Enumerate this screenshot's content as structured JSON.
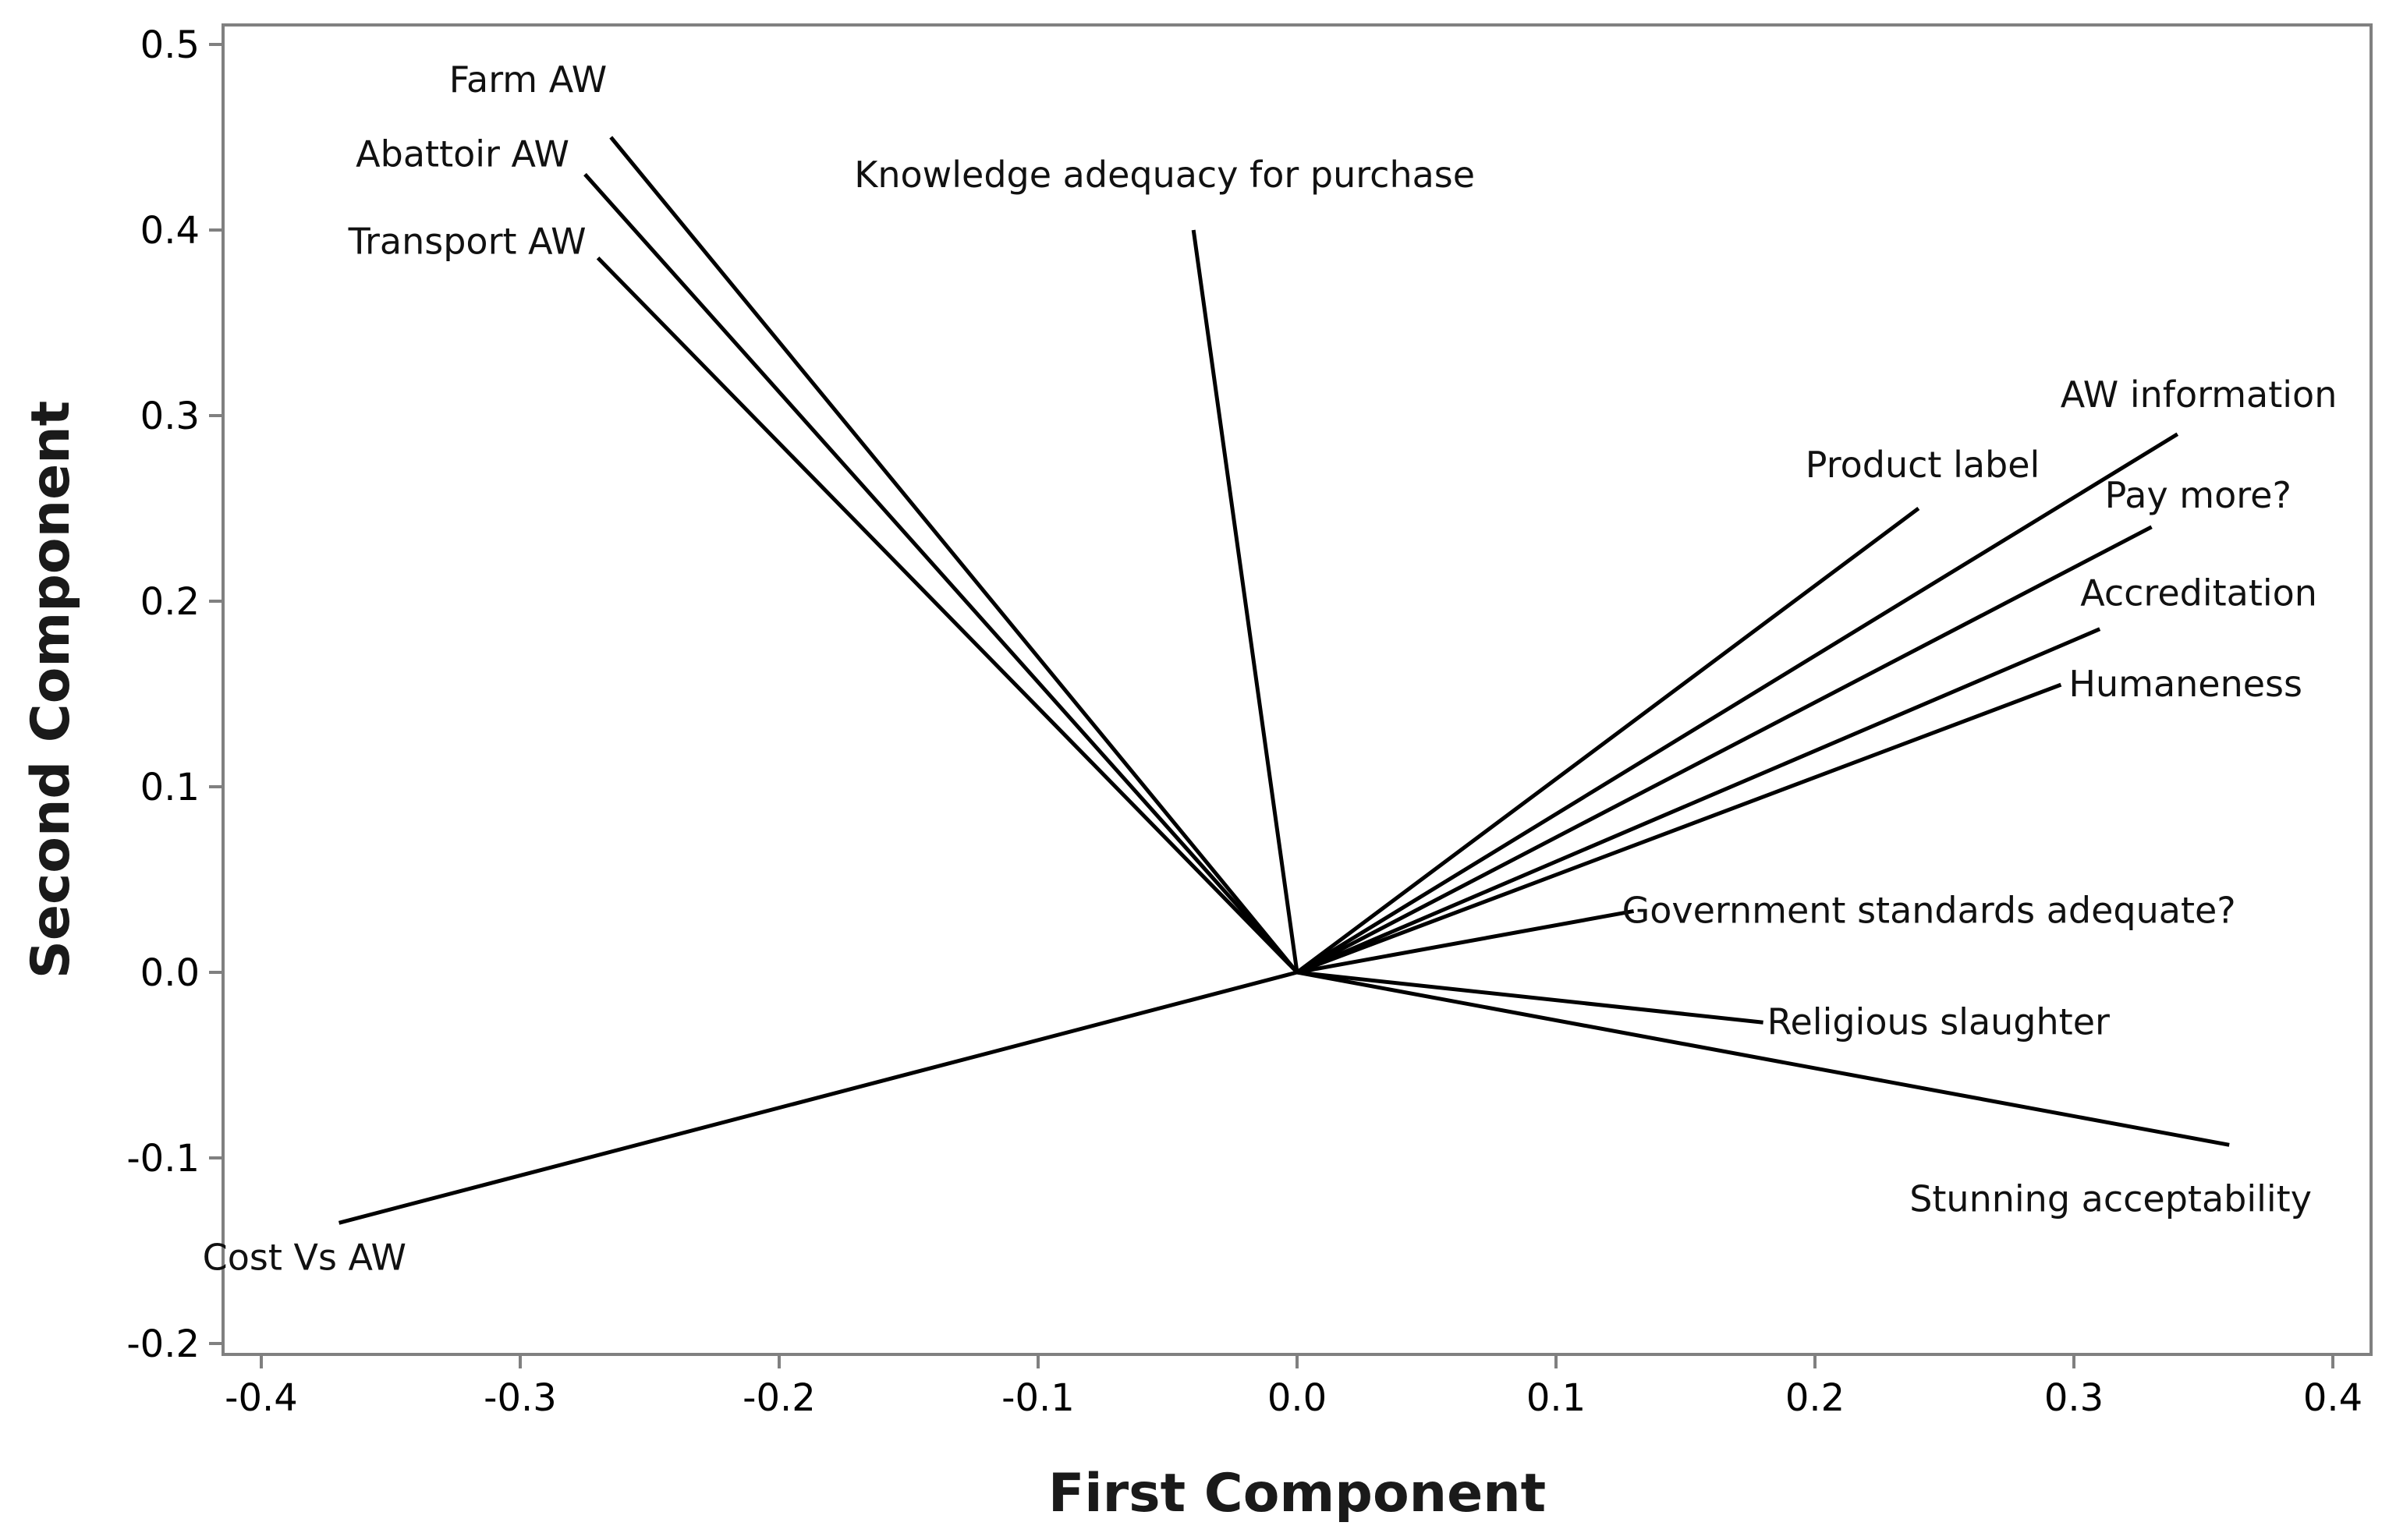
{
  "chart_data": {
    "type": "scatter",
    "subtype": "loading-plot",
    "xlabel": "First Component",
    "ylabel": "Second Component",
    "xlim": [
      -0.42,
      0.42
    ],
    "ylim": [
      -0.21,
      0.51
    ],
    "xticks": [
      -0.4,
      -0.3,
      -0.2,
      -0.1,
      0.0,
      0.1,
      0.2,
      0.3,
      0.4
    ],
    "xtick_labels": [
      "-0.4",
      "-0.3",
      "-0.2",
      "-0.1",
      "0.0",
      "0.1",
      "0.2",
      "0.3",
      "0.4"
    ],
    "yticks": [
      -0.2,
      -0.1,
      0.0,
      0.1,
      0.2,
      0.3,
      0.4,
      0.5
    ],
    "ytick_labels": [
      "-0.2",
      "-0.1",
      "0.0",
      "0.1",
      "0.2",
      "0.3",
      "0.4",
      "0.5"
    ],
    "grid": false,
    "legend": "none",
    "line_color": "#000000",
    "frame_color": "#808080",
    "vectors": [
      {
        "label": "Farm AW",
        "x": -0.265,
        "y": 0.45
      },
      {
        "label": "Abattoir AW",
        "x": -0.275,
        "y": 0.43
      },
      {
        "label": "Transport AW",
        "x": -0.27,
        "y": 0.385
      },
      {
        "label": "Knowledge adequacy for purchase",
        "x": -0.04,
        "y": 0.4
      },
      {
        "label": "Product label",
        "x": 0.24,
        "y": 0.25
      },
      {
        "label": "AW information",
        "x": 0.34,
        "y": 0.29
      },
      {
        "label": "Pay more?",
        "x": 0.33,
        "y": 0.24
      },
      {
        "label": "Accreditation",
        "x": 0.31,
        "y": 0.185
      },
      {
        "label": "Humaneness",
        "x": 0.295,
        "y": 0.155
      },
      {
        "label": "Government standards adequate?",
        "x": 0.13,
        "y": 0.033
      },
      {
        "label": "Religious slaughter",
        "x": 0.18,
        "y": -0.027
      },
      {
        "label": "Stunning acceptability",
        "x": 0.36,
        "y": -0.093
      },
      {
        "label": "Cost Vs AW",
        "x": -0.37,
        "y": -0.135
      }
    ]
  }
}
